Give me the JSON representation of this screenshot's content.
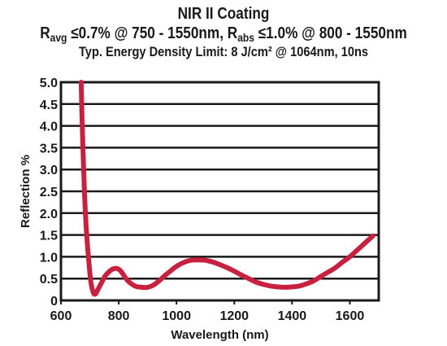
{
  "title": {
    "line1": "NIR II Coating",
    "line2_a": "R",
    "line2_avg": "avg",
    "line2_b": " ≤0.7% @ 750 - 1550nm, R",
    "line2_abs": "abs",
    "line2_c": " ≤1.0% @ 800 - 1550nm",
    "line3": "Typ. Energy Density Limit: 8 J/cm² @ 1064nm, 10ns"
  },
  "colors": {
    "curve": "#c8213f",
    "grid": "#1a1a1a",
    "text": "#1a1a1a"
  },
  "chart_data": {
    "type": "line",
    "xlabel": "Wavelength (nm)",
    "ylabel": "Reflection %",
    "xlim": [
      600,
      1700
    ],
    "ylim": [
      0,
      5.0
    ],
    "xticks": [
      "600",
      "800",
      "1000",
      "1200",
      "1400",
      "1600"
    ],
    "xtick_values": [
      600,
      800,
      1000,
      1200,
      1400,
      1600
    ],
    "yticks": [
      "0",
      "0.5",
      "1.0",
      "1.5",
      "2.0",
      "2.5",
      "3.0",
      "3.5",
      "4.0",
      "4.5",
      "5.0"
    ],
    "ytick_values": [
      0,
      0.5,
      1.0,
      1.5,
      2.0,
      2.5,
      3.0,
      3.5,
      4.0,
      4.5,
      5.0
    ],
    "grid": "horizontal",
    "series": [
      {
        "x": [
          670,
          673,
          677,
          682,
          688,
          695,
          703,
          712,
          720,
          728,
          740,
          752,
          765,
          780,
          795,
          810,
          825,
          840,
          860,
          880,
          900,
          920,
          940,
          960,
          980,
          1000,
          1025,
          1050,
          1075,
          1100,
          1125,
          1150,
          1175,
          1200,
          1225,
          1250,
          1275,
          1300,
          1325,
          1350,
          1375,
          1400,
          1425,
          1450,
          1475,
          1500,
          1525,
          1550,
          1575,
          1600,
          1625,
          1650,
          1680
        ],
        "y": [
          5.0,
          4.2,
          3.3,
          2.4,
          1.6,
          1.0,
          0.45,
          0.18,
          0.15,
          0.25,
          0.4,
          0.55,
          0.65,
          0.72,
          0.73,
          0.65,
          0.5,
          0.4,
          0.32,
          0.3,
          0.3,
          0.35,
          0.45,
          0.57,
          0.68,
          0.78,
          0.87,
          0.92,
          0.93,
          0.92,
          0.88,
          0.82,
          0.75,
          0.67,
          0.58,
          0.5,
          0.42,
          0.37,
          0.33,
          0.31,
          0.3,
          0.31,
          0.33,
          0.38,
          0.45,
          0.55,
          0.65,
          0.75,
          0.88,
          1.0,
          1.15,
          1.3,
          1.48
        ]
      }
    ]
  }
}
